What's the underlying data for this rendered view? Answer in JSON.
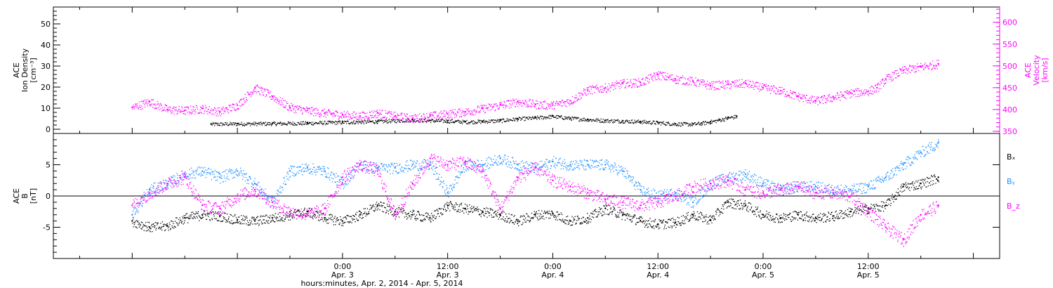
{
  "chart_data": [
    {
      "type": "scatter",
      "ylabel_left": [
        "ACE",
        "Ion Density",
        "[cm⁻³]"
      ],
      "ylabel_right": [
        "ACE",
        "Velocity",
        "[km/s]"
      ],
      "ylim_left": [
        -2,
        58
      ],
      "ylim_right": [
        345,
        635
      ],
      "yticks_left": [
        "0",
        "10",
        "20",
        "30",
        "40",
        "50"
      ],
      "yticks_right": [
        "350",
        "400",
        "450",
        "500",
        "550",
        "600"
      ],
      "series": [
        {
          "axis": "left",
          "color": "#000000",
          "x": [
            -15,
            -12,
            -8,
            -4,
            0,
            4,
            8,
            10,
            12,
            14,
            16,
            18,
            20,
            22,
            24,
            26,
            28,
            30,
            32,
            34,
            36,
            38,
            40,
            41,
            42,
            43,
            44,
            45
          ],
          "values": [
            2.5,
            2.7,
            2.8,
            3.0,
            3.4,
            3.8,
            4.5,
            4.2,
            4.0,
            3.6,
            3.8,
            4.2,
            5.0,
            5.5,
            6.2,
            5.3,
            4.7,
            4.2,
            4.0,
            3.7,
            3.2,
            2.6,
            2.5,
            2.9,
            3.6,
            4.5,
            5.5,
            6.2
          ]
        },
        {
          "axis": "right",
          "color": "#ff00ff",
          "x": [
            -24,
            -22,
            -20,
            -18,
            -16,
            -14,
            -12,
            -10,
            -8,
            -6,
            -4,
            -2,
            0,
            2,
            4,
            6,
            8,
            10,
            12,
            14,
            16,
            18,
            20,
            22,
            24,
            26,
            28,
            30,
            32,
            34,
            36,
            38,
            40,
            42,
            44,
            46,
            48,
            50,
            52,
            54,
            56,
            58,
            60,
            61,
            62,
            64,
            66,
            68
          ],
          "values": [
            405,
            418,
            400,
            398,
            402,
            395,
            410,
            450,
            430,
            405,
            398,
            392,
            388,
            385,
            392,
            385,
            380,
            385,
            390,
            395,
            402,
            410,
            418,
            412,
            410,
            420,
            445,
            450,
            460,
            462,
            480,
            470,
            465,
            455,
            458,
            460,
            450,
            443,
            430,
            420,
            428,
            438,
            442,
            450,
            470,
            490,
            498,
            505
          ]
        }
      ],
      "annotations": []
    },
    {
      "type": "scatter",
      "ylabel": [
        "ACE",
        "B",
        "[nT]"
      ],
      "ylim": [
        -10,
        10
      ],
      "yticks": [
        "-5",
        "0",
        "5"
      ],
      "legend": [
        "Bₓ",
        "Bᵧ",
        "B_z"
      ],
      "legend_placement": "right",
      "series": [
        {
          "name": "Bₓ",
          "color": "#000000",
          "x": [
            -24,
            -22,
            -20,
            -18,
            -16,
            -14,
            -12,
            -10,
            -8,
            -6,
            -4,
            -2,
            0,
            2,
            4,
            6,
            8,
            10,
            12,
            14,
            16,
            18,
            20,
            22,
            24,
            26,
            28,
            30,
            32,
            34,
            36,
            38,
            40,
            42,
            44,
            46,
            48,
            50,
            52,
            54,
            56,
            58,
            60,
            62,
            64,
            66,
            68
          ],
          "values": [
            -4.0,
            -5.0,
            -4.8,
            -3.5,
            -3.0,
            -3.2,
            -3.8,
            -4.0,
            -3.5,
            -3.0,
            -2.5,
            -3.5,
            -4.0,
            -3.0,
            -1.5,
            -2.5,
            -3.0,
            -3.5,
            -1.5,
            -2.0,
            -2.5,
            -3.0,
            -4.0,
            -3.0,
            -2.8,
            -4.0,
            -3.5,
            -2.0,
            -3.0,
            -4.0,
            -4.5,
            -4.2,
            -3.0,
            -3.8,
            -1.0,
            -1.5,
            -3.0,
            -3.5,
            -3.0,
            -3.5,
            -3.2,
            -2.5,
            -2.0,
            -1.5,
            1.5,
            2.0,
            3.0
          ]
        },
        {
          "name": "Bᵧ",
          "color": "#1e90ff",
          "x": [
            -24,
            -22,
            -20,
            -18,
            -16,
            -14,
            -12,
            -10,
            -8,
            -6,
            -4,
            -2,
            0,
            2,
            4,
            6,
            8,
            10,
            12,
            14,
            16,
            18,
            20,
            22,
            24,
            26,
            28,
            30,
            32,
            34,
            36,
            38,
            40,
            42,
            44,
            46,
            48,
            50,
            52,
            54,
            56,
            58,
            60,
            62,
            64,
            66,
            68
          ],
          "values": [
            -3.0,
            1.0,
            2.0,
            3.5,
            4.0,
            3.0,
            4.0,
            2.0,
            -1.0,
            4.0,
            4.5,
            4.0,
            2.0,
            5.0,
            4.5,
            4.5,
            5.0,
            5.0,
            0.5,
            5.0,
            5.0,
            6.0,
            5.0,
            4.5,
            5.5,
            5.0,
            5.0,
            5.0,
            4.0,
            1.0,
            0.0,
            0.5,
            -1.0,
            2.0,
            3.0,
            3.5,
            2.0,
            1.0,
            1.5,
            1.5,
            1.0,
            1.0,
            1.5,
            3.0,
            5.0,
            7.0,
            8.5
          ]
        },
        {
          "name": "B_z",
          "color": "#ff00ff",
          "x": [
            -24,
            -22,
            -20,
            -18,
            -16,
            -14,
            -12,
            -10,
            -8,
            -6,
            -4,
            -2,
            0,
            2,
            4,
            6,
            8,
            10,
            12,
            14,
            16,
            18,
            20,
            22,
            24,
            26,
            28,
            30,
            32,
            34,
            36,
            38,
            40,
            42,
            44,
            46,
            48,
            50,
            52,
            54,
            56,
            58,
            60,
            62,
            64,
            66,
            68
          ],
          "values": [
            -1.5,
            0.5,
            2.0,
            3.0,
            -1.5,
            -2.0,
            0.0,
            1.0,
            -1.0,
            -2.5,
            -3.0,
            -2.0,
            3.0,
            5.0,
            4.0,
            -3.0,
            2.0,
            6.0,
            5.0,
            5.5,
            4.0,
            -2.0,
            3.0,
            4.5,
            2.5,
            1.5,
            0.5,
            -0.5,
            -1.0,
            -1.5,
            -1.0,
            0.0,
            1.5,
            2.0,
            2.5,
            1.0,
            0.5,
            1.0,
            1.5,
            0.5,
            0.5,
            0.0,
            -2.5,
            -5.0,
            -7.0,
            -3.0,
            -1.5
          ]
        }
      ]
    }
  ],
  "time_axis": {
    "xlim": [
      -33,
      75
    ],
    "ticks": [
      {
        "x": 0,
        "time": "0:00",
        "date": "Apr. 3"
      },
      {
        "x": 12,
        "time": "12:00",
        "date": "Apr. 3"
      },
      {
        "x": 24,
        "time": "0:00",
        "date": "Apr. 4"
      },
      {
        "x": 36,
        "time": "12:00",
        "date": "Apr. 4"
      },
      {
        "x": 48,
        "time": "0:00",
        "date": "Apr. 5"
      },
      {
        "x": 60,
        "time": "12:00",
        "date": "Apr. 5"
      }
    ],
    "label": "hours:minutes, Apr.  2, 2014 - Apr.  5, 2014"
  }
}
